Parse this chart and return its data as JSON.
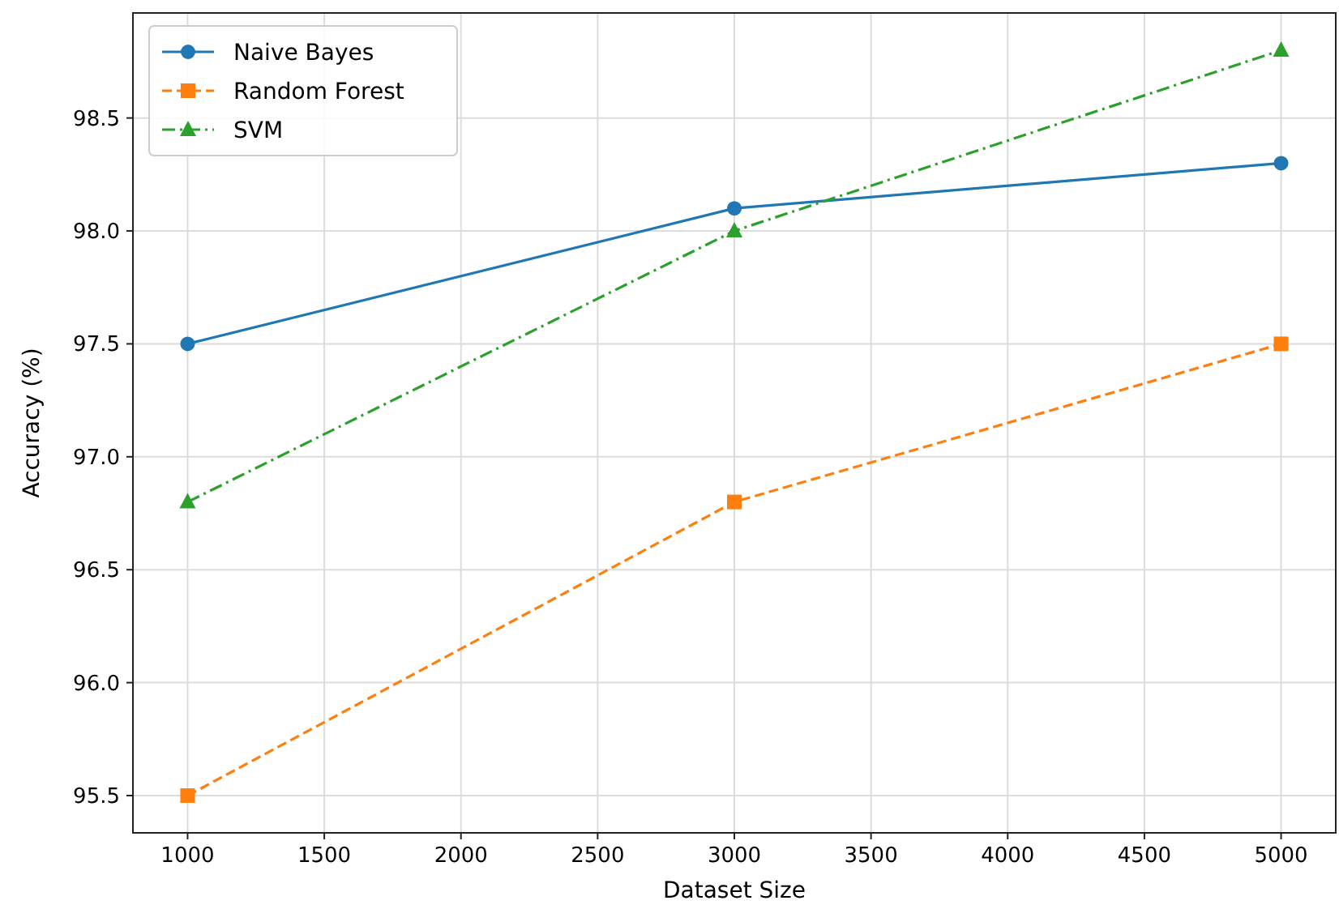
{
  "chart_data": {
    "type": "line",
    "xlabel": "Dataset Size",
    "ylabel": "Accuracy (%)",
    "x": [
      1000,
      3000,
      5000
    ],
    "series": [
      {
        "name": "Naive Bayes",
        "color": "#1f77b4",
        "values": [
          97.5,
          98.1,
          98.3
        ],
        "marker": "circle",
        "line_style": "solid"
      },
      {
        "name": "Random Forest",
        "color": "#ff7f0e",
        "values": [
          95.5,
          96.8,
          97.5
        ],
        "marker": "square",
        "line_style": "dashed"
      },
      {
        "name": "SVM",
        "color": "#2ca02c",
        "values": [
          96.8,
          98.0,
          98.8
        ],
        "marker": "triangle",
        "line_style": "dashdot"
      }
    ],
    "xlim": [
      800,
      5200
    ],
    "xticks": [
      1000,
      1500,
      2000,
      2500,
      3000,
      3500,
      4000,
      4500,
      5000
    ],
    "ylim": [
      95.335,
      98.965
    ],
    "yticks": [
      {
        "value": 95.5,
        "label": "95.5"
      },
      {
        "value": 96,
        "label": "96.0"
      },
      {
        "value": 96.5,
        "label": "96.5"
      },
      {
        "value": 97,
        "label": "97.0"
      },
      {
        "value": 97.5,
        "label": "97.5"
      },
      {
        "value": 98,
        "label": "98.0"
      },
      {
        "value": 98.5,
        "label": "98.5"
      }
    ],
    "grid": true,
    "legend": "top left"
  }
}
